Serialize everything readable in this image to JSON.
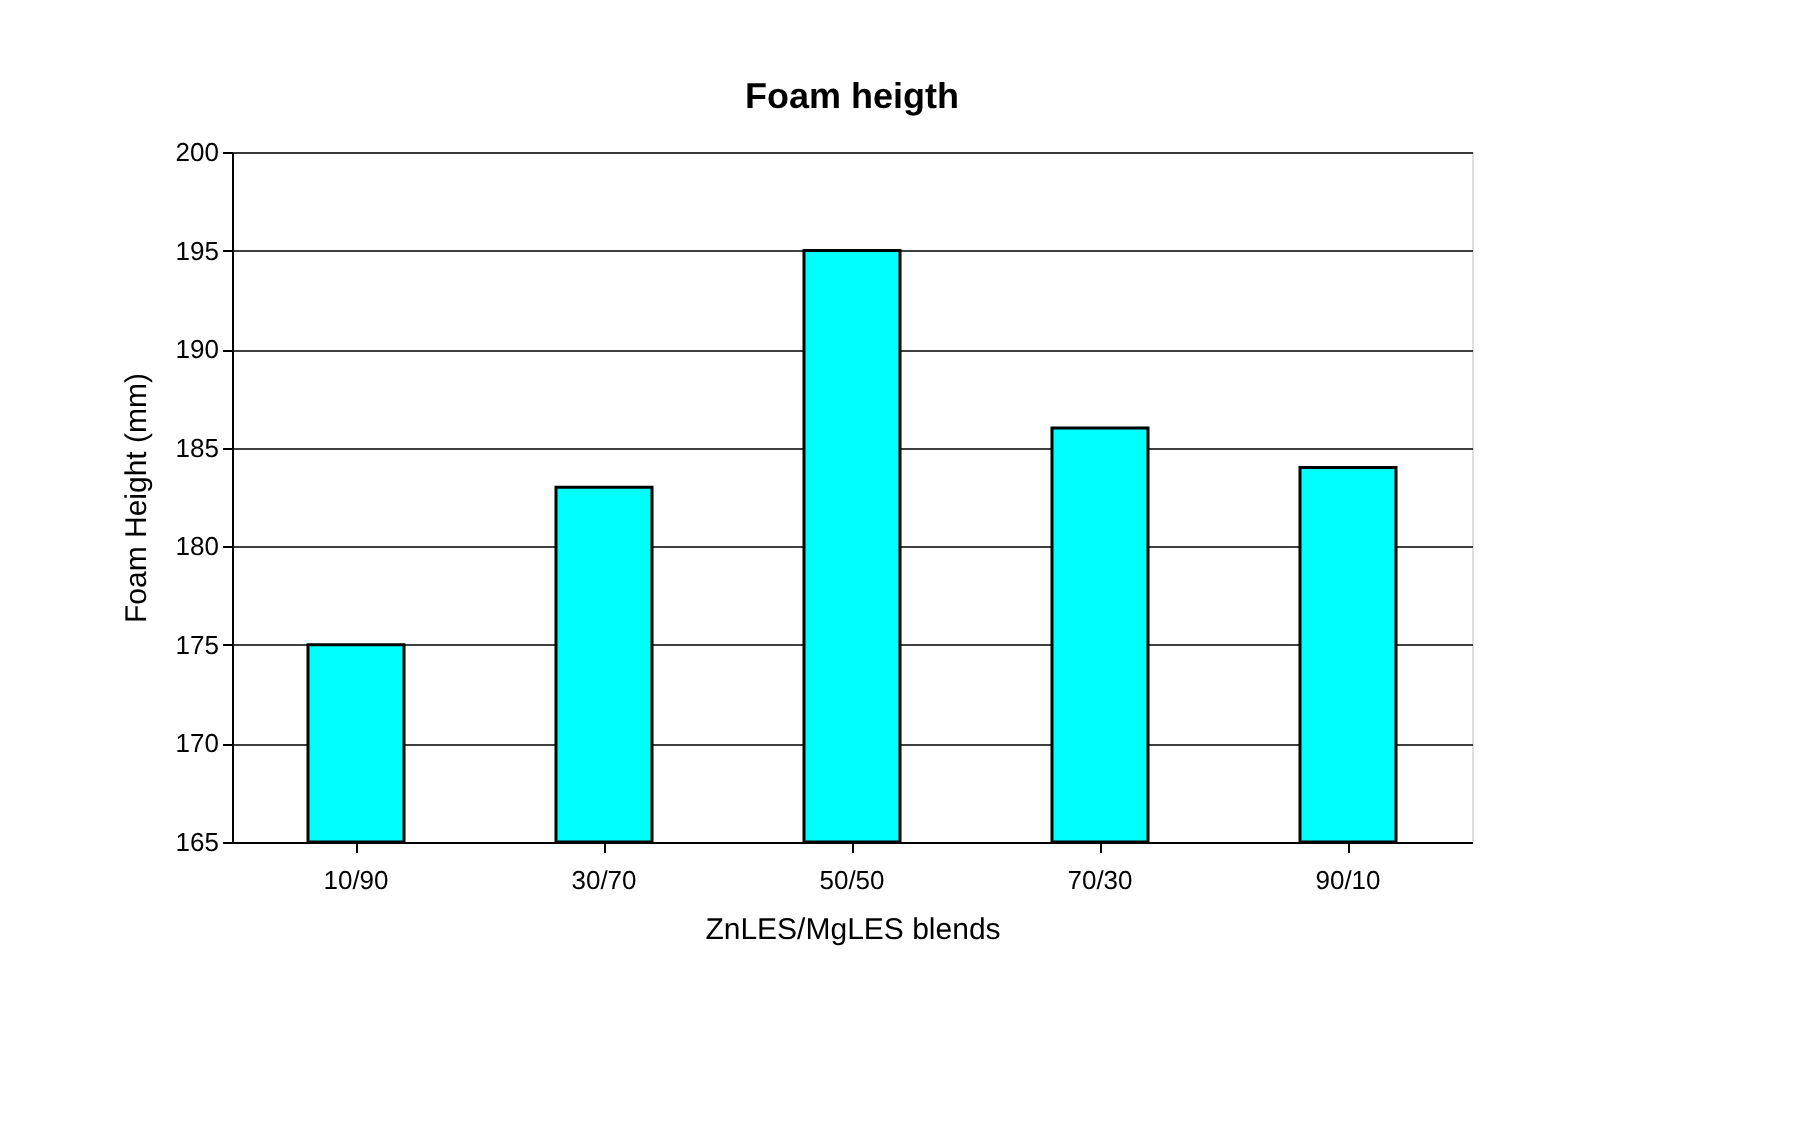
{
  "chart_data": {
    "type": "bar",
    "title": "Foam heigth",
    "xlabel": "ZnLES/MgLES blends",
    "ylabel": "Foam Height (mm)",
    "categories": [
      "10/90",
      "30/70",
      "50/50",
      "70/30",
      "90/10"
    ],
    "values": [
      175,
      183,
      195,
      186,
      184
    ],
    "color": "#00ffff",
    "ylim": [
      165,
      200
    ],
    "yticks": [
      165,
      170,
      175,
      180,
      185,
      190,
      195,
      200
    ],
    "grid": "y"
  }
}
